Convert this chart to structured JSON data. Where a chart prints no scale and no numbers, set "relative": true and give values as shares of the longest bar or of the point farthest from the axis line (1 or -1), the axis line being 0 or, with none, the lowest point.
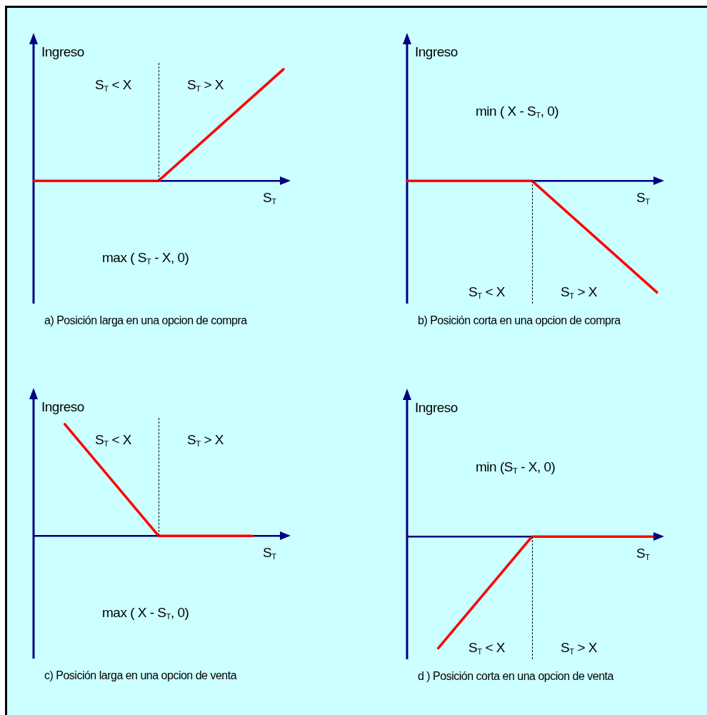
{
  "chart_data": [
    {
      "type": "line",
      "relative": true,
      "title": "a) Posición larga en una opcion de compra",
      "xlabel": "S$_{T}$",
      "ylabel": "Ingreso",
      "tick_labels": false,
      "categories": [
        null,
        null,
        null,
        null,
        null,
        null,
        null,
        null,
        null
      ],
      "series": [
        {
          "color": "#ff0000",
          "values": [
            0,
            null,
            null,
            null,
            0,
            null,
            null,
            null,
            1
          ]
        }
      ],
      "annotations": [
        "S$_{T}$ < X",
        "S$_{T}$ > X",
        "max ( S$_{T}$ - X, 0)"
      ]
    },
    {
      "type": "line",
      "relative": true,
      "title": "b) Posición corta en una opcion de compra",
      "xlabel": "S$_{T}$",
      "ylabel": "Ingreso",
      "tick_labels": false,
      "categories": [
        null,
        null,
        null,
        null,
        null,
        null,
        null,
        null,
        null
      ],
      "series": [
        {
          "color": "#ff0000",
          "values": [
            0,
            null,
            null,
            null,
            0,
            null,
            null,
            null,
            -1
          ]
        }
      ],
      "annotations": [
        "S$_{T}$ < X",
        "S$_{T}$ > X",
        "min ( X - S$_{T}$, 0)"
      ]
    },
    {
      "type": "line",
      "relative": true,
      "title": "c) Posición larga en una opcion de venta",
      "xlabel": "S$_{T}$",
      "ylabel": "Ingreso",
      "tick_labels": false,
      "categories": [
        null,
        null,
        null,
        null,
        null,
        null,
        null,
        null,
        null
      ],
      "series": [
        {
          "color": "#ff0000",
          "values": [
            null,
            1,
            null,
            null,
            0,
            null,
            null,
            0,
            null
          ]
        }
      ],
      "annotations": [
        "S$_{T}$ < X",
        "S$_{T}$ > X",
        "max ( X - S$_{T}$, 0)"
      ]
    },
    {
      "type": "line",
      "relative": true,
      "title": "d ) Posición corta en una opcion de venta",
      "xlabel": "S$_{T}$",
      "ylabel": "Ingreso",
      "tick_labels": false,
      "categories": [
        null,
        null,
        null,
        null,
        null,
        null,
        null,
        null,
        null
      ],
      "series": [
        {
          "color": "#ff0000",
          "values": [
            null,
            -1,
            null,
            null,
            0,
            null,
            null,
            null,
            0
          ]
        }
      ],
      "annotations": [
        "S$_{T}$ < X",
        "S$_{T}$ > X",
        "min (S$_{T}$ - X, 0)"
      ]
    }
  ]
}
